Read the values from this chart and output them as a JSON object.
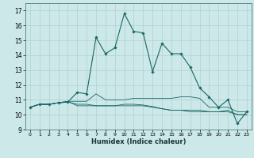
{
  "xlabel": "Humidex (Indice chaleur)",
  "bg_color": "#cce8e8",
  "grid_color": "#b0d0d0",
  "line_color": "#1a6666",
  "xlim": [
    -0.5,
    23.5
  ],
  "ylim": [
    9,
    17.5
  ],
  "xticks": [
    0,
    1,
    2,
    3,
    4,
    5,
    6,
    7,
    8,
    9,
    10,
    11,
    12,
    13,
    14,
    15,
    16,
    17,
    18,
    19,
    20,
    21,
    22,
    23
  ],
  "yticks": [
    9,
    10,
    11,
    12,
    13,
    14,
    15,
    16,
    17
  ],
  "series1": [
    10.5,
    10.7,
    10.7,
    10.8,
    10.85,
    11.5,
    11.4,
    15.2,
    14.1,
    14.5,
    16.8,
    15.6,
    15.5,
    12.9,
    14.8,
    14.1,
    14.1,
    13.2,
    11.8,
    11.2,
    10.5,
    11.0,
    9.4,
    10.2
  ],
  "series2": [
    10.5,
    10.7,
    10.7,
    10.8,
    10.9,
    10.9,
    10.9,
    11.4,
    11.0,
    11.0,
    11.0,
    11.1,
    11.1,
    11.1,
    11.1,
    11.1,
    11.2,
    11.2,
    11.1,
    10.5,
    10.5,
    10.5,
    10.2,
    10.2
  ],
  "series3": [
    10.5,
    10.7,
    10.7,
    10.8,
    10.9,
    10.6,
    10.6,
    10.6,
    10.6,
    10.6,
    10.7,
    10.7,
    10.65,
    10.55,
    10.4,
    10.3,
    10.3,
    10.3,
    10.3,
    10.2,
    10.2,
    10.2,
    10.0,
    10.0
  ],
  "series4": [
    10.5,
    10.7,
    10.7,
    10.8,
    10.85,
    10.7,
    10.7,
    10.6,
    10.6,
    10.6,
    10.6,
    10.6,
    10.6,
    10.5,
    10.4,
    10.3,
    10.3,
    10.2,
    10.2,
    10.2,
    10.2,
    10.3,
    10.0,
    10.0
  ]
}
